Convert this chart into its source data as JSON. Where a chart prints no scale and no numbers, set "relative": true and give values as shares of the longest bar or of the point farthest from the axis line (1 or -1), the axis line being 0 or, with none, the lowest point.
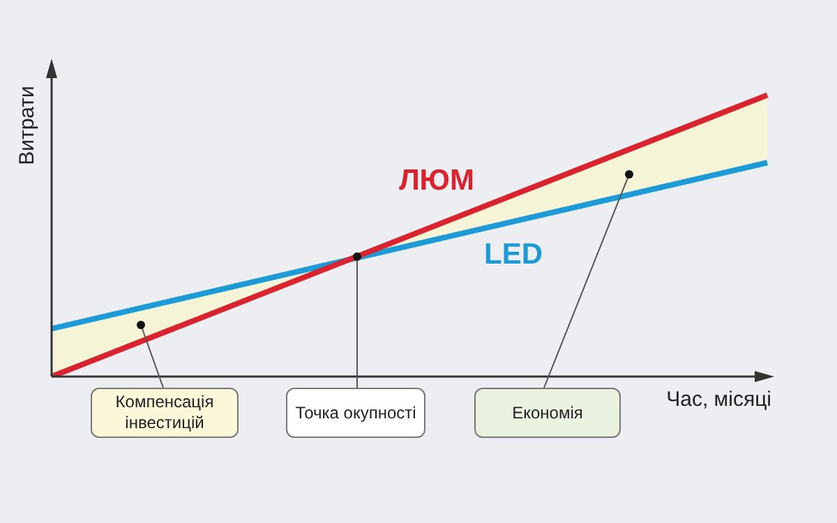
{
  "chart_data": {
    "type": "line",
    "relative": true,
    "categories": [
      null,
      null
    ],
    "series": [
      {
        "name": "ЛЮМ",
        "color": "#d9232e",
        "values": [
          0,
          1
        ]
      },
      {
        "name": "LED",
        "color": "#1e9ad6",
        "values": [
          0.17,
          0.76
        ]
      }
    ],
    "xlabel": "Час, місяці",
    "ylabel": "Витрати",
    "marker": "none",
    "annotations": [
      "Компенсація інвестицій",
      "Точка окупності",
      "Економія"
    ]
  }
}
